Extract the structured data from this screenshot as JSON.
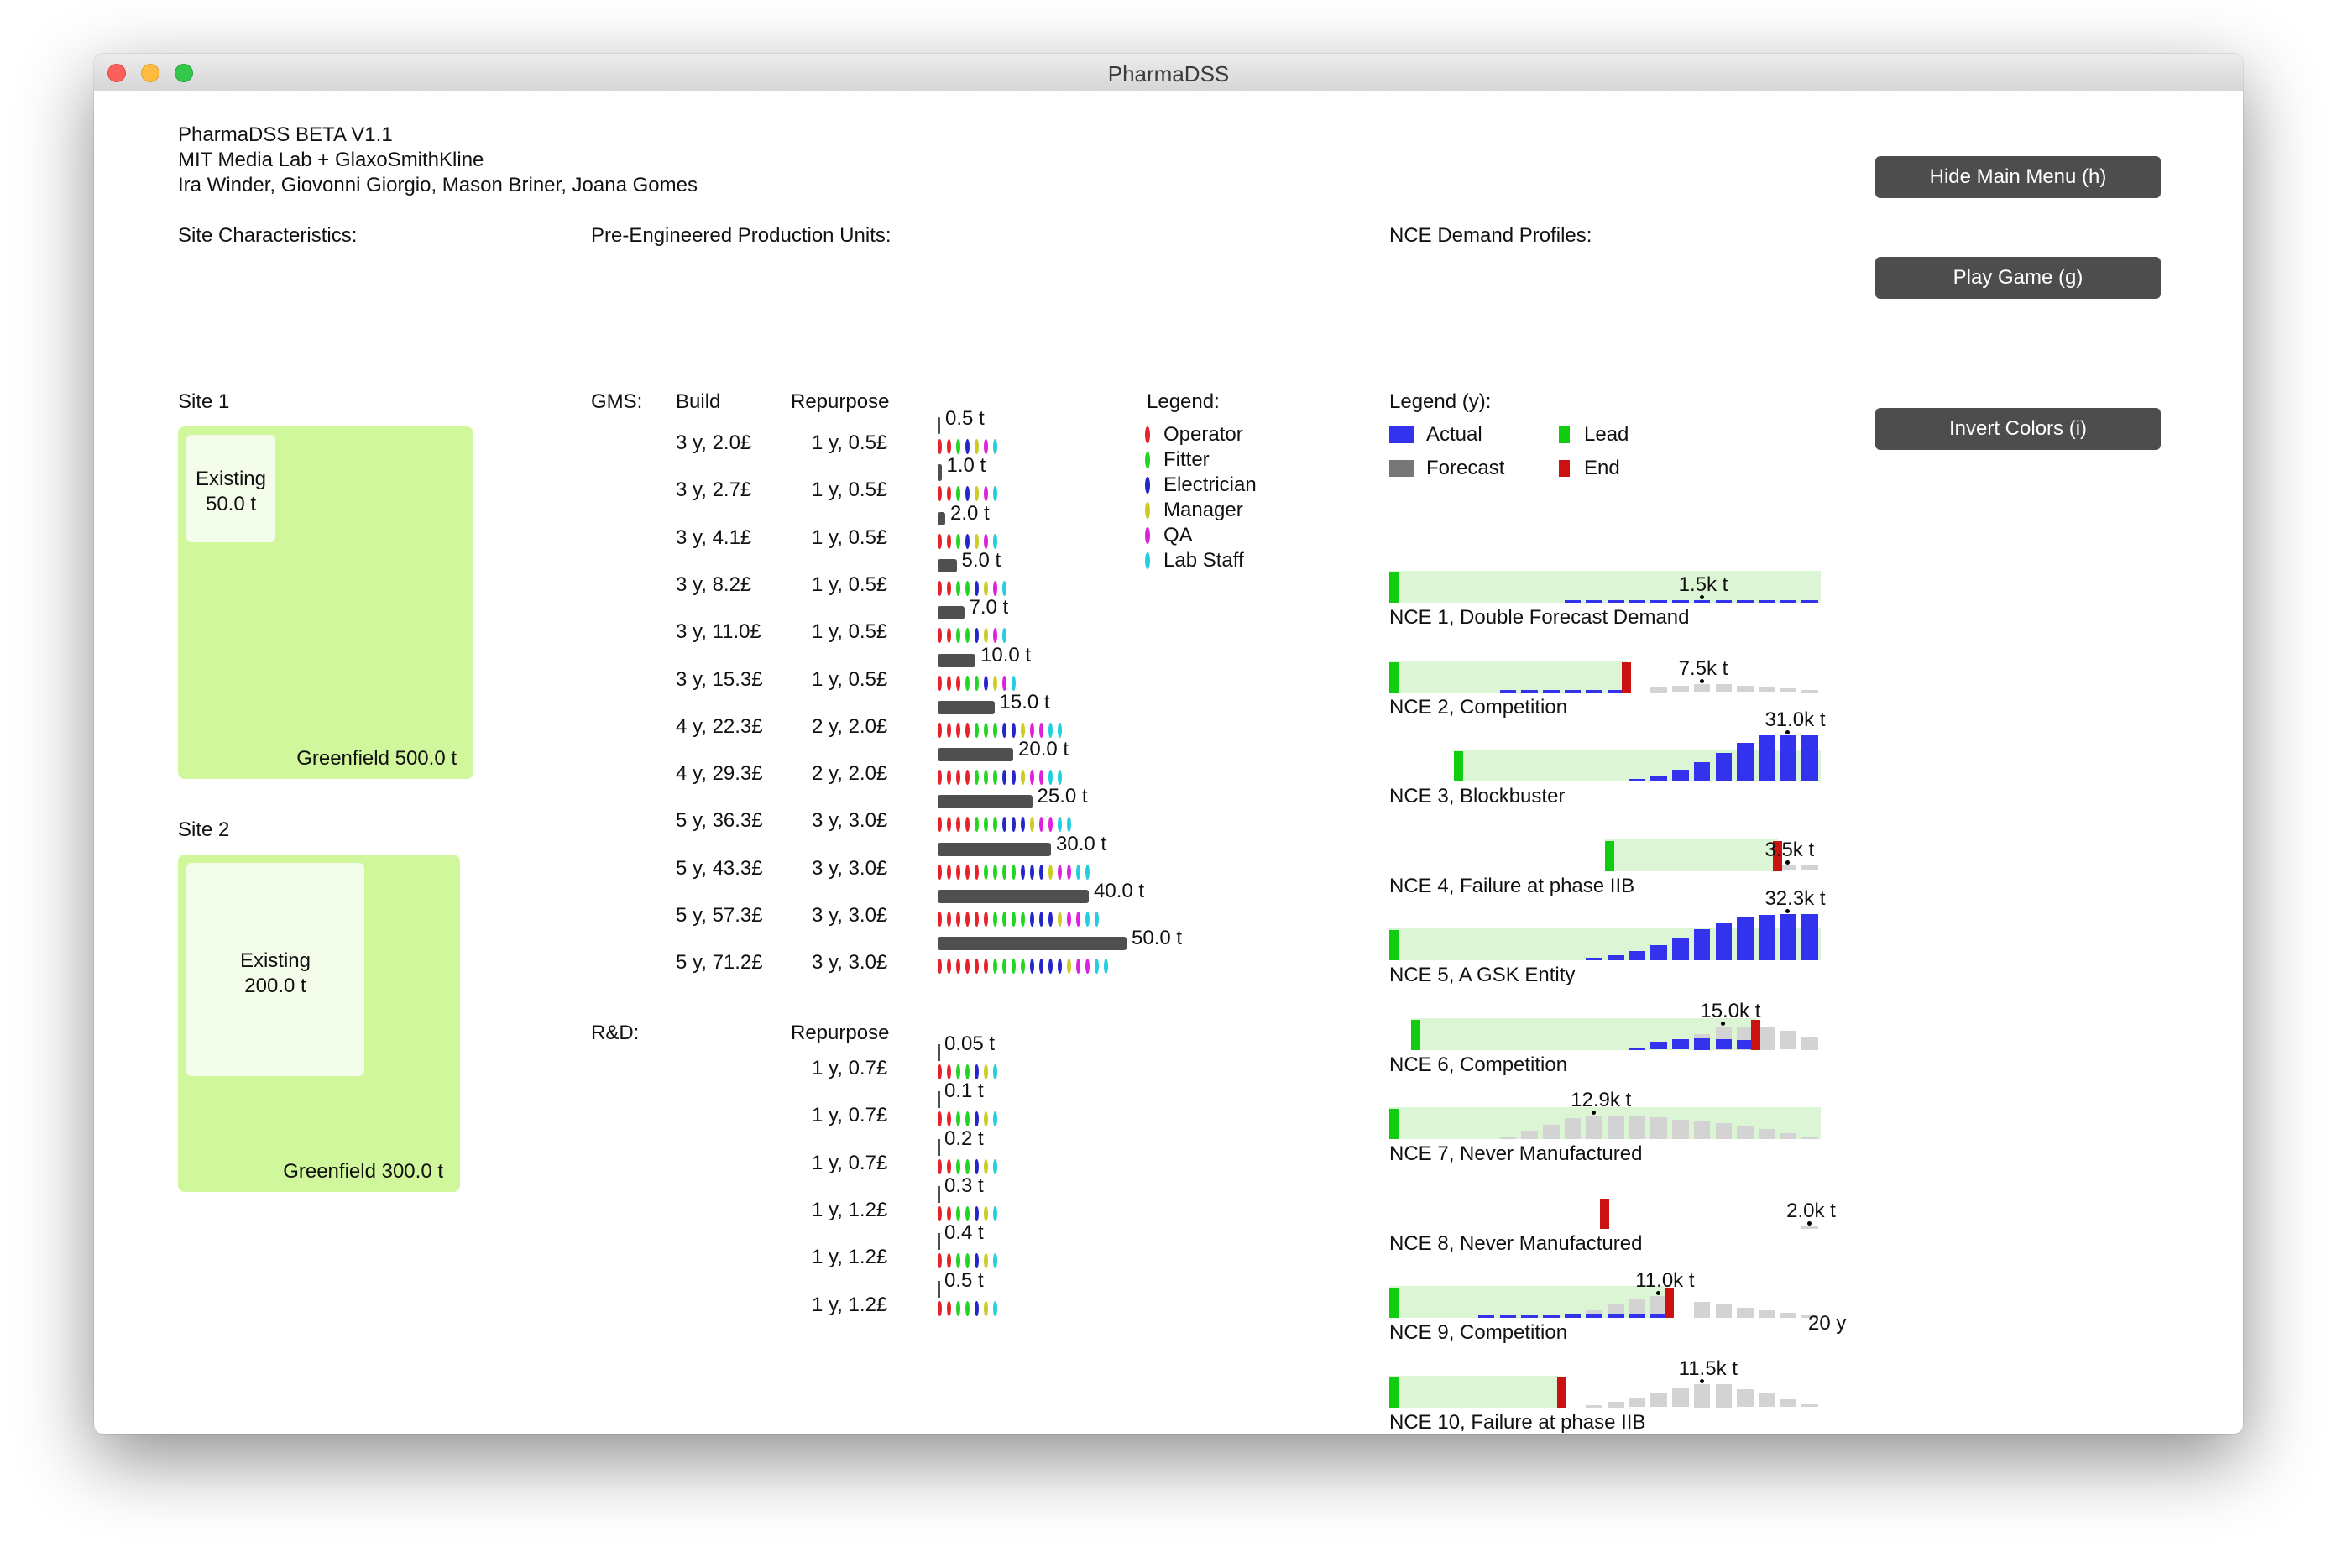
{
  "window": {
    "title": "PharmaDSS"
  },
  "header": {
    "lines": [
      "PharmaDSS BETA V1.1",
      "MIT Media Lab + GlaxoSmithKline",
      "Ira Winder, Giovonni Giorgio, Mason Briner, Joana Gomes"
    ]
  },
  "buttons": {
    "hide_menu": "Hide Main Menu (h)",
    "play_game": "Play Game (g)",
    "invert_colors": "Invert Colors (i)"
  },
  "sections": {
    "sites": "Site Characteristics:",
    "units": "Pre-Engineered Production Units:",
    "nce": "NCE Demand Profiles:"
  },
  "sites": [
    {
      "name": "Site 1",
      "existing_label": "Existing",
      "existing_value": "50.0 t",
      "greenfield": "Greenfield 500.0 t"
    },
    {
      "name": "Site 2",
      "existing_label": "Existing",
      "existing_value": "200.0 t",
      "greenfield": "Greenfield 300.0 t"
    }
  ],
  "gms": {
    "label": "GMS:",
    "build_header": "Build",
    "repurpose_header": "Repurpose",
    "rows": [
      {
        "build": "3 y, 2.0£",
        "repurpose": "1 y, 0.5£",
        "capacity": 0.5,
        "cap_label": "0.5 t",
        "staff": [
          2,
          1,
          1,
          1,
          1,
          1
        ]
      },
      {
        "build": "3 y, 2.7£",
        "repurpose": "1 y, 0.5£",
        "capacity": 1.0,
        "cap_label": "1.0 t",
        "staff": [
          2,
          1,
          1,
          1,
          1,
          1
        ]
      },
      {
        "build": "3 y, 4.1£",
        "repurpose": "1 y, 0.5£",
        "capacity": 2.0,
        "cap_label": "2.0 t",
        "staff": [
          2,
          1,
          1,
          1,
          1,
          1
        ]
      },
      {
        "build": "3 y, 8.2£",
        "repurpose": "1 y, 0.5£",
        "capacity": 5.0,
        "cap_label": "5.0 t",
        "staff": [
          2,
          2,
          1,
          1,
          1,
          1
        ]
      },
      {
        "build": "3 y, 11.0£",
        "repurpose": "1 y, 0.5£",
        "capacity": 7.0,
        "cap_label": "7.0 t",
        "staff": [
          2,
          2,
          1,
          1,
          1,
          1
        ]
      },
      {
        "build": "3 y, 15.3£",
        "repurpose": "1 y, 0.5£",
        "capacity": 10.0,
        "cap_label": "10.0 t",
        "staff": [
          3,
          2,
          1,
          1,
          1,
          1
        ]
      },
      {
        "build": "4 y, 22.3£",
        "repurpose": "2 y, 2.0£",
        "capacity": 15.0,
        "cap_label": "15.0 t",
        "staff": [
          4,
          3,
          2,
          1,
          2,
          2
        ]
      },
      {
        "build": "4 y, 29.3£",
        "repurpose": "2 y, 2.0£",
        "capacity": 20.0,
        "cap_label": "20.0 t",
        "staff": [
          4,
          3,
          2,
          1,
          2,
          2
        ]
      },
      {
        "build": "5 y, 36.3£",
        "repurpose": "3 y, 3.0£",
        "capacity": 25.0,
        "cap_label": "25.0 t",
        "staff": [
          4,
          3,
          3,
          1,
          2,
          2
        ]
      },
      {
        "build": "5 y, 43.3£",
        "repurpose": "3 y, 3.0£",
        "capacity": 30.0,
        "cap_label": "30.0 t",
        "staff": [
          5,
          4,
          3,
          1,
          2,
          2
        ]
      },
      {
        "build": "5 y, 57.3£",
        "repurpose": "3 y, 3.0£",
        "capacity": 40.0,
        "cap_label": "40.0 t",
        "staff": [
          6,
          4,
          3,
          1,
          2,
          2
        ]
      },
      {
        "build": "5 y, 71.2£",
        "repurpose": "3 y, 3.0£",
        "capacity": 50.0,
        "cap_label": "50.0 t",
        "staff": [
          6,
          4,
          4,
          1,
          2,
          2
        ]
      }
    ]
  },
  "rnd": {
    "label": "R&D:",
    "repurpose_header": "Repurpose",
    "rows": [
      {
        "repurpose": "1 y, 0.7£",
        "capacity": 0.05,
        "cap_label": "0.05 t",
        "staff": [
          2,
          2,
          1,
          1,
          0,
          1
        ]
      },
      {
        "repurpose": "1 y, 0.7£",
        "capacity": 0.1,
        "cap_label": "0.1 t",
        "staff": [
          2,
          2,
          1,
          1,
          0,
          1
        ]
      },
      {
        "repurpose": "1 y, 0.7£",
        "capacity": 0.2,
        "cap_label": "0.2 t",
        "staff": [
          2,
          2,
          1,
          1,
          0,
          1
        ]
      },
      {
        "repurpose": "1 y, 1.2£",
        "capacity": 0.3,
        "cap_label": "0.3 t",
        "staff": [
          2,
          2,
          1,
          1,
          0,
          1
        ]
      },
      {
        "repurpose": "1 y, 1.2£",
        "capacity": 0.4,
        "cap_label": "0.4 t",
        "staff": [
          2,
          2,
          1,
          1,
          0,
          1
        ]
      },
      {
        "repurpose": "1 y, 1.2£",
        "capacity": 0.5,
        "cap_label": "0.5 t",
        "staff": [
          2,
          2,
          1,
          1,
          0,
          1
        ]
      }
    ]
  },
  "staff_legend": {
    "title": "Legend:",
    "items": [
      {
        "label": "Operator",
        "color": "#e8222a"
      },
      {
        "label": "Fitter",
        "color": "#24d424"
      },
      {
        "label": "Electrician",
        "color": "#2525c8"
      },
      {
        "label": "Manager",
        "color": "#cccc22"
      },
      {
        "label": "QA",
        "color": "#dd22dd"
      },
      {
        "label": "Lab Staff",
        "color": "#22cfe0"
      }
    ]
  },
  "demand_legend": {
    "title": "Legend (y):",
    "items": [
      {
        "label": "Actual",
        "color": "#3333ee"
      },
      {
        "label": "Lead",
        "color": "#11cc11"
      },
      {
        "label": "Forecast",
        "color": "#777777"
      },
      {
        "label": "End",
        "color": "#cc1111"
      }
    ]
  },
  "colors": {
    "site_green": "#d1f79c",
    "existing": "#f4fcea",
    "button": "#4d4d4d",
    "bar": "#4f4f4f",
    "demand_band": "#dcf5d4",
    "forecast_bar": "#d3d3d3"
  },
  "nce_profiles": [
    {
      "name": "NCE 1, Double Forecast Demand",
      "peak": "1.5k t",
      "lead": 0,
      "end": null,
      "actual": [
        0,
        0,
        0,
        0,
        0,
        0,
        0,
        0,
        0.3,
        0.3,
        0.5,
        0.5,
        0.5,
        0.5,
        0.6,
        0.6,
        0.6,
        0.6,
        0.6,
        0.6
      ],
      "forecast": [
        0,
        0,
        0,
        0,
        0,
        0,
        0,
        0,
        0,
        0,
        0,
        0,
        0,
        0,
        0,
        0,
        0,
        0,
        0,
        0
      ]
    },
    {
      "name": "NCE 2, Competition",
      "peak": "7.5k t",
      "lead": 0,
      "end": 11,
      "actual": [
        0,
        0,
        0,
        0,
        0,
        0.2,
        0.3,
        0.4,
        0.5,
        0.6,
        0.6,
        0,
        0,
        0,
        0,
        0,
        0,
        0,
        0,
        0
      ],
      "forecast": [
        0,
        0,
        0,
        0,
        0,
        0,
        0,
        0,
        0,
        0,
        0,
        0,
        1.5,
        2.2,
        2.7,
        2.7,
        2.2,
        1.7,
        1.2,
        0.7
      ]
    },
    {
      "name": "NCE 3, Blockbuster",
      "peak": "31.0k t",
      "lead": 3,
      "end": null,
      "actual": [
        0,
        0,
        0,
        0,
        0,
        0,
        0,
        0,
        0,
        0,
        0,
        0.7,
        2.0,
        4.0,
        6.5,
        9.7,
        13.1,
        15.7,
        15.8,
        15.8
      ],
      "forecast": [
        0,
        0,
        0,
        0,
        0,
        0,
        0,
        0,
        0,
        0,
        0,
        0,
        0,
        0,
        0,
        0,
        0,
        0,
        0,
        0
      ]
    },
    {
      "name": "NCE 4, Failure at phase IIB",
      "peak": "3.5k t",
      "lead": 10,
      "end": 18,
      "actual": [
        0,
        0,
        0,
        0,
        0,
        0,
        0,
        0,
        0,
        0,
        0,
        0,
        0,
        0,
        0,
        0,
        0,
        0,
        0,
        0
      ],
      "forecast": [
        0,
        0,
        0,
        0,
        0,
        0,
        0,
        0,
        0,
        0,
        0,
        0,
        0,
        0,
        0,
        0,
        0,
        0,
        1.8,
        1.8
      ]
    },
    {
      "name": "NCE 5, A GSK Entity",
      "peak": "32.3k t",
      "lead": 0,
      "end": null,
      "actual": [
        0,
        0,
        0,
        0,
        0,
        0,
        0,
        0,
        0,
        0.7,
        1.6,
        3.2,
        5.2,
        7.6,
        10.6,
        12.7,
        14.5,
        15.3,
        15.8,
        15.8
      ],
      "forecast": [
        0,
        0,
        0,
        0,
        0,
        0,
        0,
        0,
        0,
        0,
        0,
        0,
        0,
        0,
        0,
        0,
        0,
        0,
        0,
        0
      ]
    },
    {
      "name": "NCE 6, Competition",
      "peak": "15.0k t",
      "lead": 1,
      "end": 17,
      "actual": [
        0,
        0,
        0,
        0,
        0,
        0,
        0,
        0,
        0,
        0,
        0,
        0.8,
        2.7,
        3.7,
        4.0,
        3.7,
        3.2,
        0,
        0,
        0
      ],
      "forecast": [
        0,
        0,
        0,
        0,
        0,
        0,
        0,
        0,
        0,
        0,
        0,
        0,
        0,
        0,
        5.3,
        8.0,
        8.0,
        8.0,
        6.3,
        4.5
      ]
    },
    {
      "name": "NCE 7, Never Manufactured",
      "peak": "12.9k t",
      "lead": 0,
      "end": null,
      "actual": [
        0,
        0,
        0,
        0,
        0,
        0,
        0,
        0,
        0,
        0,
        0,
        0,
        0,
        0,
        0,
        0,
        0,
        0,
        0,
        0
      ],
      "forecast": [
        0,
        0,
        0,
        0,
        0,
        1.0,
        3.0,
        5.0,
        7.2,
        8.0,
        8.0,
        8.0,
        7.3,
        6.7,
        6.0,
        5.5,
        4.5,
        3.3,
        2.0,
        1.0
      ]
    },
    {
      "name": "NCE 8, Never Manufactured",
      "peak": "2.0k t",
      "lead": null,
      "end": 10,
      "actual": [
        0,
        0,
        0,
        0,
        0,
        0,
        0,
        0,
        0,
        0,
        0,
        0,
        0,
        0,
        0,
        0,
        0,
        0,
        0,
        0
      ],
      "forecast": [
        0,
        0,
        0,
        0,
        0,
        0,
        0,
        0,
        0,
        0,
        0,
        0,
        0,
        0,
        0,
        0,
        0,
        0,
        0,
        0.2
      ]
    },
    {
      "name": "NCE 9, Competition",
      "peak": "11.0k t",
      "lead": 0,
      "end": 13,
      "actual": [
        0,
        0,
        0,
        0,
        0.3,
        0.5,
        0.8,
        1.1,
        1.4,
        1.5,
        1.5,
        1.5,
        1.5,
        0,
        0,
        0,
        0,
        0,
        0,
        0
      ],
      "forecast": [
        0,
        0,
        0,
        0,
        0,
        0,
        0,
        0,
        0,
        2.5,
        4.6,
        6.2,
        7.5,
        0,
        5.5,
        4.5,
        3.5,
        2.6,
        1.6,
        1.0
      ]
    },
    {
      "name": "NCE 10, Failure at phase IIB",
      "peak": "11.5k t",
      "lead": 0,
      "end": 8,
      "actual": [
        0,
        0,
        0,
        0,
        0,
        0,
        0,
        0,
        0,
        0,
        0,
        0,
        0,
        0,
        0,
        0,
        0,
        0,
        0,
        0
      ],
      "forecast": [
        0,
        0,
        0,
        0,
        0,
        0,
        0,
        0,
        0,
        0.7,
        2.0,
        3.3,
        4.8,
        6.3,
        8.0,
        8.0,
        6.2,
        4.6,
        2.8,
        1.1
      ]
    }
  ],
  "timeline_label": "20 y"
}
